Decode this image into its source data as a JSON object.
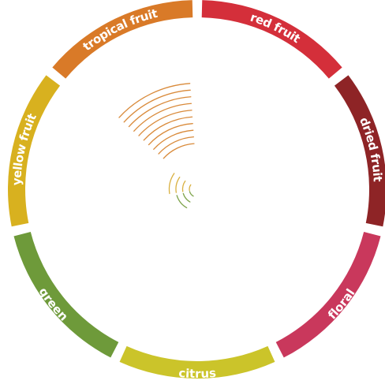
{
  "chart_data": {
    "type": "radial-flavor-wheel",
    "segments": [
      {
        "label": "red fruit",
        "color": "#d42f3a"
      },
      {
        "label": "dried fruit",
        "color": "#8e2426"
      },
      {
        "label": "floral",
        "color": "#c9385c"
      },
      {
        "label": "citrus",
        "color": "#cbc42a"
      },
      {
        "label": "green",
        "color": "#6e9a3a"
      },
      {
        "label": "yellow fruit",
        "color": "#d8b11f"
      },
      {
        "label": "tropical fruit",
        "color": "#d97a28"
      }
    ],
    "intensity_arcs": [
      {
        "segment": "tropical fruit",
        "count": 10,
        "color": "#d98a3a"
      },
      {
        "segment": "yellow fruit",
        "count": 4,
        "color": "#d9b040"
      },
      {
        "segment": "green",
        "count": 3,
        "color": "#7da34a"
      }
    ]
  }
}
